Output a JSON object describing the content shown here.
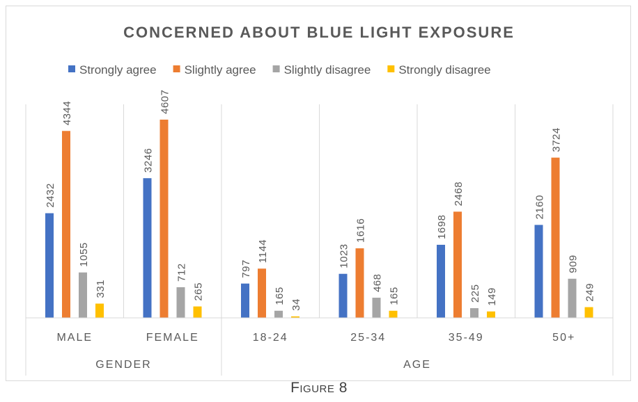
{
  "chart_data": {
    "type": "bar",
    "title": "CONCERNED ABOUT BLUE LIGHT EXPOSURE",
    "categories": [
      "MALE",
      "FEMALE",
      "18-24",
      "25-34",
      "35-49",
      "50+"
    ],
    "groups": [
      {
        "label": "GENDER",
        "categories": [
          "MALE",
          "FEMALE"
        ]
      },
      {
        "label": "AGE",
        "categories": [
          "18-24",
          "25-34",
          "35-49",
          "50+"
        ]
      }
    ],
    "series": [
      {
        "name": "Strongly agree",
        "color": "#4472C4",
        "values": [
          2432,
          3246,
          797,
          1023,
          1698,
          2160
        ]
      },
      {
        "name": "Slightly agree",
        "color": "#ED7D31",
        "values": [
          4344,
          4607,
          1144,
          1616,
          2468,
          3724
        ]
      },
      {
        "name": "Slightly disagree",
        "color": "#A5A5A5",
        "values": [
          1055,
          712,
          165,
          468,
          225,
          909
        ]
      },
      {
        "name": "Strongly disagree",
        "color": "#FFC000",
        "values": [
          331,
          265,
          34,
          165,
          149,
          249
        ]
      }
    ],
    "ylim": [
      0,
      5000
    ],
    "grid": false,
    "legend": "top",
    "data_labels": true
  },
  "caption": "Figure 8"
}
